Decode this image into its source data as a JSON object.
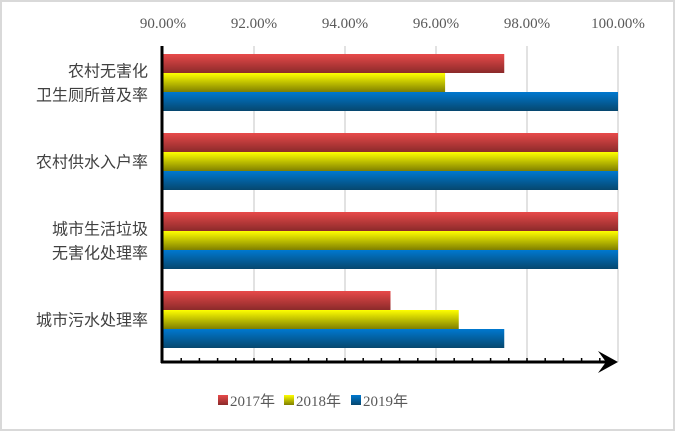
{
  "chart_data": {
    "type": "bar",
    "orientation": "horizontal",
    "title": "",
    "xlabel": "",
    "ylabel": "",
    "xlim": [
      0.9,
      1.0
    ],
    "x_ticks": [
      "90.00%",
      "92.00%",
      "94.00%",
      "96.00%",
      "98.00%",
      "100.00%"
    ],
    "x_tick_values": [
      0.9,
      0.92,
      0.94,
      0.96,
      0.98,
      1.0
    ],
    "x_axis_position": "top",
    "grid": true,
    "categories": [
      [
        "农村无害化",
        "卫生厕所普及率"
      ],
      [
        "农村供水入户率"
      ],
      [
        "城市生活垃圾",
        "无害化处理率"
      ],
      [
        "城市污水处理率"
      ]
    ],
    "series": [
      {
        "name": "2017年",
        "color": "#e84a4a",
        "color_dark": "#8b2a2a",
        "values": [
          0.975,
          1.0,
          1.0,
          0.95
        ]
      },
      {
        "name": "2018年",
        "color": "#ffff00",
        "color_dark": "#7f7f00",
        "values": [
          0.962,
          1.0,
          1.0,
          0.965
        ]
      },
      {
        "name": "2019年",
        "color": "#0078d0",
        "color_dark": "#06476e",
        "values": [
          1.0,
          1.0,
          1.0,
          0.975
        ]
      }
    ],
    "legend": {
      "position": "bottom"
    }
  }
}
